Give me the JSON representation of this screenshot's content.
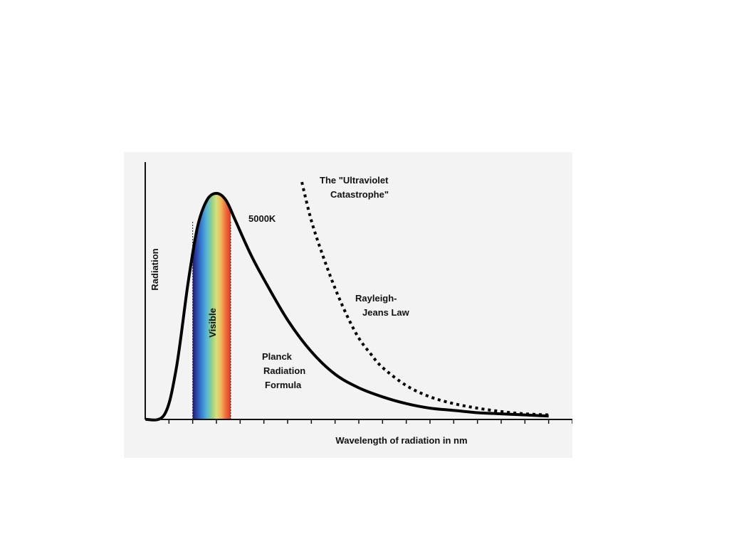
{
  "chart_data": {
    "type": "line",
    "xlabel": "Wavelength of radiation in nm",
    "ylabel": "Radiation",
    "grid": false,
    "annotations": {
      "temperature": "5000K",
      "catastrophe_line1": "The \"Ultraviolet",
      "catastrophe_line2": "Catastrophe\"",
      "rj_line1": "Rayleigh-",
      "rj_line2": "Jeans Law",
      "planck_line1": "Planck",
      "planck_line2": "Radiation",
      "planck_line3": "Formula",
      "visible": "Visible"
    },
    "xlim": [
      0,
      18
    ],
    "ylim": [
      0,
      1.1
    ],
    "visible_band": [
      2,
      3.6
    ],
    "spectrum_colors": [
      "#1e1a7a",
      "#2e4fb0",
      "#3a86d6",
      "#57b8d4",
      "#8fd08a",
      "#d8e07a",
      "#f2b35a",
      "#ee6a3a",
      "#e23a26"
    ],
    "series": [
      {
        "style": "solid",
        "x": [
          0,
          0.8,
          1.3,
          1.8,
          2.2,
          2.6,
          3.0,
          3.4,
          3.8,
          4.4,
          5.0,
          6.0,
          7.0,
          8.0,
          9.0,
          10.0,
          11.0,
          12.0,
          13.0,
          14.0,
          15.0,
          16.0,
          17.0
        ],
        "y": [
          0.0,
          0.02,
          0.22,
          0.6,
          0.85,
          0.97,
          1.0,
          0.97,
          0.88,
          0.74,
          0.62,
          0.44,
          0.3,
          0.2,
          0.14,
          0.1,
          0.07,
          0.05,
          0.04,
          0.03,
          0.025,
          0.02,
          0.015
        ]
      },
      {
        "style": "dotted",
        "x": [
          6.6,
          7.0,
          7.5,
          8.0,
          8.5,
          9.0,
          9.5,
          10.0,
          11.0,
          12.0,
          13.0,
          14.0,
          15.0,
          16.0,
          17.0
        ],
        "y": [
          1.05,
          0.88,
          0.72,
          0.58,
          0.46,
          0.36,
          0.29,
          0.23,
          0.15,
          0.1,
          0.07,
          0.05,
          0.035,
          0.025,
          0.02
        ]
      }
    ]
  }
}
